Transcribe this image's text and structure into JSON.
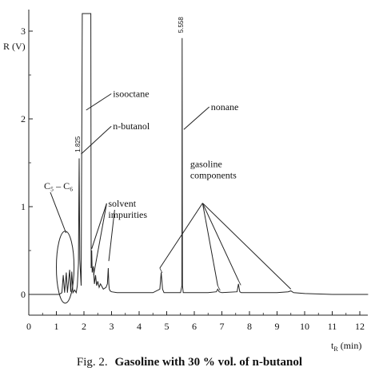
{
  "chart_data": {
    "type": "line",
    "caption_prefix": "Fig. 2.",
    "caption_text": "Gasoline with 30 % vol. of n-butanol",
    "ylabel": "R (V)",
    "xlabel_main": "t",
    "xlabel_sub": "R",
    "xlabel_unit": "(min)",
    "xlim": [
      0,
      12.3
    ],
    "ylim": [
      -0.3,
      3.2
    ],
    "x_ticks": [
      0,
      1,
      2,
      3,
      4,
      5,
      6,
      7,
      8,
      9,
      10,
      11,
      12
    ],
    "x_tick_labels": [
      "0",
      "1",
      "2",
      "3",
      "4",
      "5",
      "6",
      "7",
      "8",
      "9",
      "10",
      "11",
      "12"
    ],
    "y_ticks": [
      0,
      1,
      2,
      3
    ],
    "y_tick_labels": [
      "0",
      "1",
      "2",
      "3"
    ],
    "grid": false,
    "series": [
      {
        "x": [
          0.0,
          1.1,
          1.2,
          1.25,
          1.3,
          1.36,
          1.4,
          1.48,
          1.52,
          1.56,
          1.6,
          1.66,
          1.72,
          1.76,
          1.8,
          1.825,
          1.85,
          1.9,
          1.94,
          1.96,
          1.97,
          2.25,
          2.26,
          2.28,
          2.3,
          2.34,
          2.38,
          2.42,
          2.46,
          2.5,
          2.55,
          2.6,
          2.7,
          2.8,
          2.85,
          2.88,
          2.9,
          2.92,
          2.95,
          3.0,
          3.2,
          3.5,
          4.0,
          4.5,
          4.75,
          4.8,
          4.85,
          4.9,
          5.0,
          5.5,
          5.55,
          5.558,
          5.57,
          5.6,
          5.7,
          6.0,
          6.5,
          6.8,
          6.85,
          6.9,
          7.0,
          7.55,
          7.6,
          7.65,
          7.7,
          8.0,
          8.5,
          9.0,
          9.4,
          9.5,
          9.6,
          10.0,
          11.0,
          12.3
        ],
        "y": [
          0.0,
          0.0,
          0.02,
          0.22,
          0.02,
          0.25,
          0.02,
          0.28,
          0.03,
          0.26,
          0.02,
          0.05,
          0.02,
          0.1,
          0.35,
          1.55,
          0.4,
          0.1,
          3.2,
          3.2,
          3.2,
          3.2,
          0.3,
          0.5,
          0.25,
          0.32,
          0.12,
          0.22,
          0.1,
          0.15,
          0.08,
          0.12,
          0.06,
          0.08,
          0.12,
          0.3,
          0.12,
          0.06,
          0.04,
          0.03,
          0.02,
          0.02,
          0.02,
          0.02,
          0.06,
          0.25,
          0.06,
          0.02,
          0.02,
          0.02,
          0.1,
          2.92,
          0.1,
          0.02,
          0.02,
          0.02,
          0.02,
          0.03,
          0.06,
          0.03,
          0.02,
          0.03,
          0.12,
          0.03,
          0.02,
          0.02,
          0.02,
          0.02,
          0.03,
          0.04,
          0.02,
          0.01,
          0.0,
          0.0
        ]
      }
    ],
    "peak_labels": [
      {
        "text": "1.825",
        "x": 1.86,
        "y": 1.62
      },
      {
        "text": "5.558",
        "x": 5.6,
        "y": 2.98
      }
    ],
    "annotations": [
      {
        "lines": [
          "isooctane"
        ],
        "text_at": [
          3.05,
          2.25
        ],
        "pointers": [
          [
            2.08,
            2.1
          ]
        ]
      },
      {
        "lines": [
          "n-butanol"
        ],
        "text_at": [
          3.05,
          1.88
        ],
        "pointers": [
          [
            1.9,
            1.6
          ]
        ]
      },
      {
        "lines": [
          "nonane"
        ],
        "text_at": [
          6.6,
          2.1
        ],
        "pointers": [
          [
            5.62,
            1.88
          ]
        ]
      },
      {
        "lines": [
          "C₅ – C₆"
        ],
        "text_at": [
          0.55,
          1.2
        ],
        "pointers": [
          [
            1.35,
            0.7
          ]
        ]
      },
      {
        "lines": [
          "solvent",
          "impurities"
        ],
        "text_at": [
          2.88,
          1.0
        ],
        "pointers": [
          [
            2.28,
            0.52
          ],
          [
            2.35,
            0.22
          ],
          [
            2.9,
            0.38
          ]
        ]
      },
      {
        "lines": [
          "gasoline",
          "components"
        ],
        "text_at": [
          5.85,
          1.45
        ],
        "pointers": [
          [
            4.75,
            0.3
          ],
          [
            6.85,
            0.1
          ],
          [
            7.6,
            0.16
          ],
          [
            9.5,
            0.06
          ]
        ],
        "apex": [
          6.3,
          1.04
        ]
      }
    ],
    "ellipse": {
      "cx": 1.32,
      "cy": 0.31,
      "rx": 0.32,
      "ry": 0.41
    }
  }
}
